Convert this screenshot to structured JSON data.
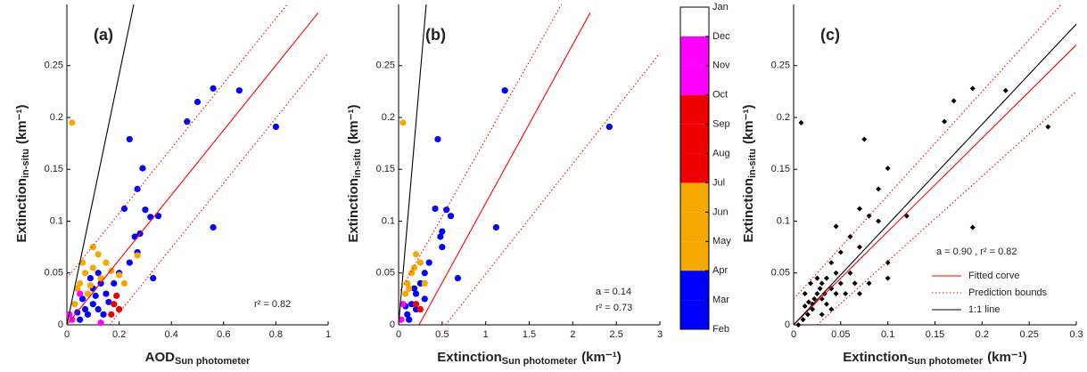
{
  "chart_data": [
    {
      "type": "scatter",
      "panel": "(a)",
      "xlabel": "AOD",
      "xlabel_sub": "Sun photometer",
      "ylabel": "Extinction",
      "ylabel_sub": "in-situ",
      "ylabel_unit": "(km⁻¹)",
      "xlim": [
        0,
        1
      ],
      "ylim": [
        0,
        0.309
      ],
      "xticks": [
        0,
        0.2,
        0.4,
        0.6,
        0.8,
        1
      ],
      "yticks": [
        0,
        0.05,
        0.1,
        0.15,
        0.2,
        0.25
      ],
      "annotations": [
        "r² = 0.82"
      ],
      "series": [
        {
          "color": "#0000ff",
          "marker": "circle",
          "x": [
            0.56,
            0.5,
            0.66,
            0.46,
            0.8,
            0.24,
            0.29,
            0.27,
            0.56,
            0.35,
            0.3,
            0.32,
            0.22,
            0.26,
            0.28,
            0.33,
            0.24,
            0.27,
            0.2,
            0.18,
            0.15,
            0.1,
            0.08,
            0.12,
            0.05,
            0.14,
            0.1,
            0.06,
            0.12,
            0.09,
            0.07,
            0.11,
            0.16,
            0.13,
            0.04
          ],
          "y": [
            0.228,
            0.215,
            0.226,
            0.196,
            0.191,
            0.179,
            0.151,
            0.131,
            0.094,
            0.105,
            0.111,
            0.104,
            0.112,
            0.085,
            0.088,
            0.045,
            0.06,
            0.07,
            0.05,
            0.04,
            0.03,
            0.02,
            0.01,
            0.015,
            0.005,
            0.01,
            0.035,
            0.025,
            0.05,
            0.045,
            0.015,
            0.028,
            0.022,
            0.04,
            0.012
          ]
        },
        {
          "color": "#f5a800",
          "marker": "circle",
          "x": [
            0.02,
            0.1,
            0.12,
            0.15,
            0.07,
            0.05,
            0.08,
            0.03,
            0.2,
            0.27,
            0.22,
            0.06,
            0.1,
            0.04,
            0.09,
            0.13,
            0.17
          ],
          "y": [
            0.195,
            0.075,
            0.068,
            0.06,
            0.05,
            0.04,
            0.03,
            0.02,
            0.048,
            0.067,
            0.04,
            0.06,
            0.055,
            0.035,
            0.038,
            0.045,
            0.052
          ]
        },
        {
          "color": "#ee0000",
          "marker": "circle",
          "x": [
            0.18,
            0.2,
            0.17,
            0.19
          ],
          "y": [
            0.02,
            0.015,
            0.01,
            0.028
          ]
        },
        {
          "color": "#ff00ff",
          "marker": "circle",
          "x": [
            0.02,
            0.05,
            0.01,
            0.13
          ],
          "y": [
            0.005,
            0.03,
            0.01,
            0.002
          ]
        }
      ],
      "lines": [
        {
          "color": "#000000",
          "style": "solid",
          "x": [
            0,
            0.256
          ],
          "y": [
            0,
            0.309
          ]
        },
        {
          "color": "#ff0000",
          "style": "solid",
          "x": [
            0,
            0.962
          ],
          "y": [
            0,
            0.301
          ]
        },
        {
          "color": "#ff0000",
          "style": "dotted",
          "x": [
            0,
            0.843
          ],
          "y": [
            0.045,
            0.309
          ]
        },
        {
          "color": "#ff0000",
          "style": "dotted",
          "x": [
            0.163,
            1
          ],
          "y": [
            0,
            0.262
          ]
        }
      ]
    },
    {
      "type": "scatter",
      "panel": "(b)",
      "xlabel": "Extinction",
      "xlabel_sub": "Sun photometer",
      "xlabel_unit": "(km⁻¹)",
      "ylabel": "Extinction",
      "ylabel_sub": "in-situ",
      "ylabel_unit": "(km⁻¹)",
      "xlim": [
        0,
        3
      ],
      "ylim": [
        0,
        0.309
      ],
      "xticks": [
        0,
        0.5,
        1,
        1.5,
        2,
        2.5,
        3
      ],
      "yticks": [
        0,
        0.05,
        0.1,
        0.15,
        0.2,
        0.25
      ],
      "annotations": [
        "a = 0.14",
        "r² = 0.73"
      ],
      "series": [
        {
          "color": "#0000ff",
          "marker": "circle",
          "x": [
            1.22,
            2.42,
            0.45,
            1.12,
            0.6,
            0.55,
            0.5,
            0.42,
            0.48,
            0.5,
            0.68,
            0.35,
            0.3,
            0.25,
            0.2,
            0.15,
            0.1,
            0.12,
            0.2,
            0.3,
            0.08,
            0.18
          ],
          "y": [
            0.226,
            0.191,
            0.179,
            0.094,
            0.105,
            0.111,
            0.09,
            0.112,
            0.085,
            0.075,
            0.045,
            0.06,
            0.05,
            0.04,
            0.03,
            0.02,
            0.01,
            0.005,
            0.015,
            0.025,
            0.018,
            0.035
          ]
        },
        {
          "color": "#f5a800",
          "marker": "circle",
          "x": [
            0.05,
            0.2,
            0.25,
            0.15,
            0.1,
            0.08,
            0.05,
            0.3,
            0.12,
            0.18
          ],
          "y": [
            0.195,
            0.068,
            0.06,
            0.05,
            0.04,
            0.03,
            0.02,
            0.04,
            0.035,
            0.055
          ]
        },
        {
          "color": "#ee0000",
          "marker": "circle",
          "x": [
            0.2,
            0.25
          ],
          "y": [
            0.02,
            0.015
          ]
        },
        {
          "color": "#ff00ff",
          "marker": "circle",
          "x": [
            0.03,
            0.05
          ],
          "y": [
            0.005,
            0.02
          ]
        }
      ],
      "lines": [
        {
          "color": "#000000",
          "style": "solid",
          "x": [
            0,
            0.317
          ],
          "y": [
            0,
            0.309
          ]
        },
        {
          "color": "#ff0000",
          "style": "solid",
          "x": [
            0.235,
            2.2
          ],
          "y": [
            0,
            0.301
          ]
        },
        {
          "color": "#ff0000",
          "style": "dotted",
          "x": [
            0,
            1.87
          ],
          "y": [
            0.03,
            0.309
          ]
        },
        {
          "color": "#ff0000",
          "style": "dotted",
          "x": [
            0.54,
            3
          ],
          "y": [
            0,
            0.262
          ]
        }
      ]
    },
    {
      "type": "colorbar",
      "labels": [
        "Jan",
        "Dec",
        "Nov",
        "Oct",
        "Sep",
        "Aug",
        "Jul",
        "Jun",
        "May",
        "Apr",
        "Mar",
        "Feb"
      ],
      "colors": [
        "#ffffff",
        "#ff00ff",
        "#ff00ff",
        "#ee0000",
        "#ee0000",
        "#ee0000",
        "#f5a800",
        "#f5a800",
        "#f5a800",
        "#0000ff",
        "#0000ff"
      ]
    },
    {
      "type": "scatter",
      "panel": "(c)",
      "xlabel": "Extinction",
      "xlabel_sub": "Sun photometer",
      "xlabel_unit": "(km⁻¹)",
      "ylabel": "Extinction",
      "ylabel_sub": "in-situ",
      "ylabel_unit": "(km⁻¹)",
      "xlim": [
        0,
        0.3
      ],
      "ylim": [
        0,
        0.309
      ],
      "xticks": [
        0,
        0.05,
        0.1,
        0.15,
        0.2,
        0.25,
        0.3
      ],
      "yticks": [
        0,
        0.05,
        0.1,
        0.15,
        0.2,
        0.25
      ],
      "annotations": [
        "a = 0.90 , r² = 0.82"
      ],
      "legend": "lower right",
      "series": [
        {
          "color": "#000000",
          "marker": "diamond",
          "x": [
            0.008,
            0.075,
            0.16,
            0.17,
            0.19,
            0.225,
            0.27,
            0.1,
            0.19,
            0.09,
            0.07,
            0.08,
            0.12,
            0.09,
            0.045,
            0.06,
            0.07,
            0.05,
            0.1,
            0.1,
            0.04,
            0.045,
            0.035,
            0.03,
            0.025,
            0.02,
            0.015,
            0.01,
            0.02,
            0.03,
            0.04,
            0.05,
            0.06,
            0.025,
            0.035,
            0.045,
            0.055,
            0.065,
            0.08,
            0.012,
            0.018,
            0.005,
            0.03,
            0.04,
            0.07,
            0.022,
            0.028,
            0.033,
            0.016,
            0.012
          ],
          "y": [
            0.195,
            0.179,
            0.196,
            0.216,
            0.228,
            0.226,
            0.191,
            0.151,
            0.094,
            0.131,
            0.112,
            0.105,
            0.105,
            0.1,
            0.095,
            0.085,
            0.075,
            0.07,
            0.06,
            0.045,
            0.06,
            0.05,
            0.045,
            0.04,
            0.03,
            0.02,
            0.01,
            0.005,
            0.015,
            0.025,
            0.035,
            0.04,
            0.05,
            0.045,
            0.02,
            0.03,
            0.03,
            0.04,
            0.04,
            0.03,
            0.04,
            0.0,
            0.01,
            0.015,
            0.03,
            0.025,
            0.035,
            0.03,
            0.022,
            0.018
          ]
        }
      ],
      "lines": [
        {
          "name": "Fitted corve",
          "color": "#ff0000",
          "style": "solid",
          "x": [
            0,
            0.3
          ],
          "y": [
            0,
            0.27
          ]
        },
        {
          "name": "Prediction bounds",
          "color": "#ff0000",
          "style": "dotted",
          "x": [
            0,
            0.284
          ],
          "y": [
            0.025,
            0.309
          ]
        },
        {
          "color": "#ff0000",
          "style": "dotted",
          "x": [
            0.025,
            0.3
          ],
          "y": [
            0,
            0.225
          ]
        },
        {
          "name": "1:1 line",
          "color": "#000000",
          "style": "solid",
          "x": [
            0,
            0.3
          ],
          "y": [
            0,
            0.29
          ]
        }
      ]
    }
  ]
}
